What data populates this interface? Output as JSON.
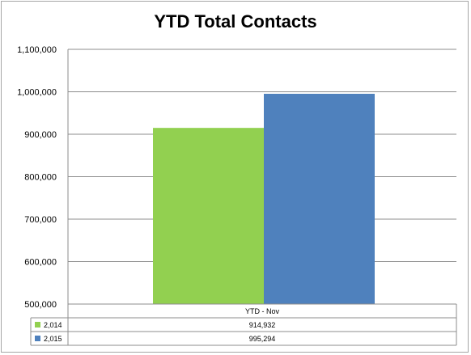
{
  "chart_data": {
    "type": "bar",
    "title": "YTD Total Contacts",
    "categories": [
      "YTD - Nov"
    ],
    "series": [
      {
        "name": "2,014",
        "values": [
          914932
        ],
        "color": "#92d050"
      },
      {
        "name": "2,015",
        "values": [
          995294
        ],
        "color": "#4f81bd"
      }
    ],
    "data_labels": [
      "914,932",
      "995,294"
    ],
    "ylim": [
      500000,
      1100000
    ],
    "yticks": [
      500000,
      600000,
      700000,
      800000,
      900000,
      1000000,
      1100000
    ],
    "ytick_labels": [
      "500,000",
      "600,000",
      "700,000",
      "800,000",
      "900,000",
      "1,000,000",
      "1,100,000"
    ],
    "grid": true,
    "legend_placement": "data-table"
  }
}
